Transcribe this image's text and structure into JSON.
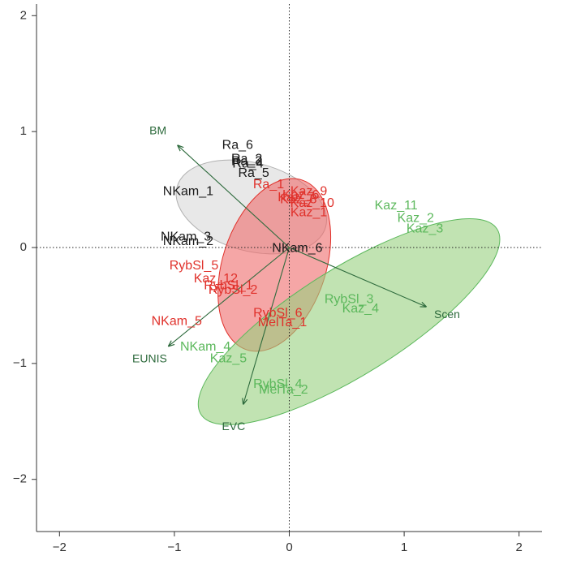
{
  "chart_data": {
    "type": "scatter",
    "title": "",
    "xlabel": "",
    "ylabel": "",
    "xlim": [
      -2.2,
      2.2
    ],
    "ylim": [
      -2.45,
      2.1
    ],
    "xticks": [
      -2,
      -1,
      0,
      1,
      2
    ],
    "yticks": [
      -2,
      -1,
      0,
      1,
      2
    ],
    "grid": false,
    "origin_lines": true,
    "groups": [
      {
        "color": "#1a1a1a",
        "fill": "#d9d9d9",
        "ellipse": {
          "cx": -0.33,
          "cy": 0.35,
          "rx": 0.67,
          "ry": 0.38,
          "angle_deg": -15
        },
        "points": [
          {
            "label": "Ra_6",
            "x": -0.45,
            "y": 0.88
          },
          {
            "label": "Ra_2",
            "x": -0.37,
            "y": 0.76
          },
          {
            "label": "Ra_3",
            "x": -0.37,
            "y": 0.74
          },
          {
            "label": "Ra_4",
            "x": -0.36,
            "y": 0.72
          },
          {
            "label": "Ra_5",
            "x": -0.31,
            "y": 0.64
          },
          {
            "label": "NKam_1",
            "x": -0.88,
            "y": 0.48
          },
          {
            "label": "NKam_3",
            "x": -0.9,
            "y": 0.09
          },
          {
            "label": "NKam_2",
            "x": -0.88,
            "y": 0.05
          },
          {
            "label": "NKam_6",
            "x": 0.07,
            "y": -0.01
          }
        ]
      },
      {
        "color": "#e0312b",
        "fill": "#ef6b6b",
        "ellipse": {
          "cx": -0.13,
          "cy": -0.15,
          "rx": 0.45,
          "ry": 0.77,
          "angle_deg": -18
        },
        "points": [
          {
            "label": "Ra_1",
            "x": -0.18,
            "y": 0.54
          },
          {
            "label": "Kaz_9",
            "x": 0.17,
            "y": 0.48
          },
          {
            "label": "Kaz_6",
            "x": 0.1,
            "y": 0.45
          },
          {
            "label": "Kaz_7",
            "x": 0.06,
            "y": 0.43
          },
          {
            "label": "Kaz_8",
            "x": 0.08,
            "y": 0.41
          },
          {
            "label": "Kaz_10",
            "x": 0.2,
            "y": 0.38
          },
          {
            "label": "Kaz_1",
            "x": 0.17,
            "y": 0.3
          },
          {
            "label": "RybSl_5",
            "x": -0.83,
            "y": -0.16
          },
          {
            "label": "Kaz_12",
            "x": -0.64,
            "y": -0.27
          },
          {
            "label": "RybSl_1",
            "x": -0.53,
            "y": -0.33
          },
          {
            "label": "RybSl_2",
            "x": -0.49,
            "y": -0.37
          },
          {
            "label": "NKam_5",
            "x": -0.98,
            "y": -0.64
          },
          {
            "label": "RybSl_6",
            "x": -0.1,
            "y": -0.57
          },
          {
            "label": "MelTa_1",
            "x": -0.06,
            "y": -0.65
          }
        ]
      },
      {
        "color": "#5cb85c",
        "fill": "#98d07f",
        "ellipse": {
          "cx": 0.52,
          "cy": -0.64,
          "rx": 1.52,
          "ry": 0.46,
          "angle_deg": 32
        },
        "points": [
          {
            "label": "Kaz_11",
            "x": 0.93,
            "y": 0.36
          },
          {
            "label": "Kaz_2",
            "x": 1.1,
            "y": 0.25
          },
          {
            "label": "Kaz_3",
            "x": 1.18,
            "y": 0.16
          },
          {
            "label": "RybSl_3",
            "x": 0.52,
            "y": -0.45
          },
          {
            "label": "Kaz_4",
            "x": 0.62,
            "y": -0.53
          },
          {
            "label": "NKam_4",
            "x": -0.73,
            "y": -0.86
          },
          {
            "label": "Kaz_5",
            "x": -0.53,
            "y": -0.96
          },
          {
            "label": "RybSl_4",
            "x": -0.1,
            "y": -1.18
          },
          {
            "label": "MelTa_2",
            "x": -0.05,
            "y": -1.23
          }
        ]
      }
    ],
    "vectors": [
      {
        "label": "BM",
        "x": -0.97,
        "y": 0.88
      },
      {
        "label": "Scen",
        "x": 1.19,
        "y": -0.51
      },
      {
        "label": "EUNIS",
        "x": -1.05,
        "y": -0.85
      },
      {
        "label": "EVC",
        "x": -0.4,
        "y": -1.35
      }
    ],
    "vector_color": "#2d6a3c",
    "axis_color": "#333333"
  }
}
